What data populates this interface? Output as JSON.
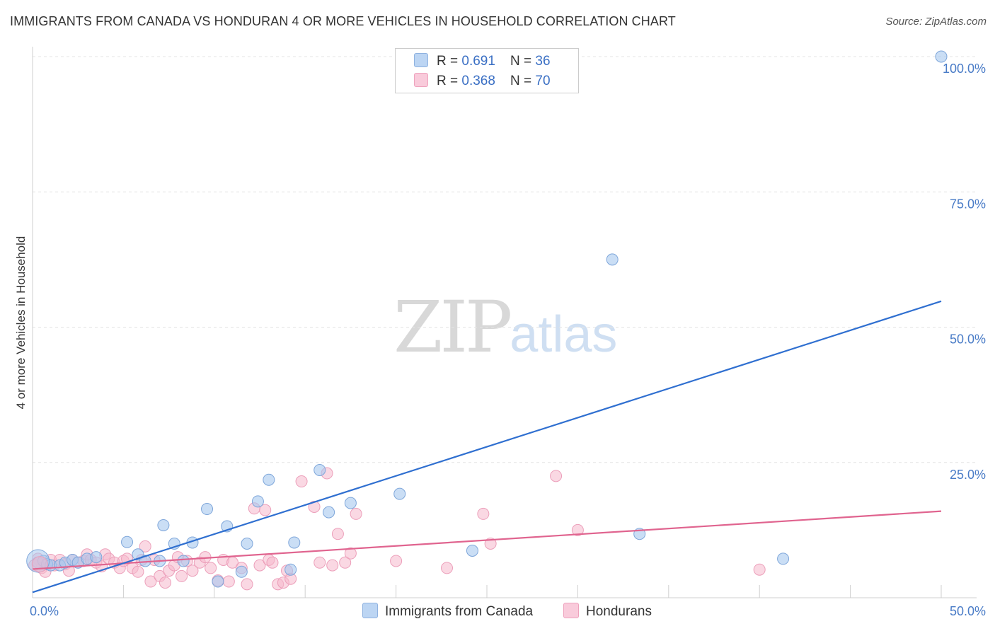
{
  "title": "IMMIGRANTS FROM CANADA VS HONDURAN 4 OR MORE VEHICLES IN HOUSEHOLD CORRELATION CHART",
  "source": "Source: ZipAtlas.com",
  "watermark": {
    "zip": "ZIP",
    "atlas": "atlas"
  },
  "legend": {
    "series1": {
      "r_label": "R = ",
      "r_value": "0.691",
      "n_label": "N = ",
      "n_value": "36"
    },
    "series2": {
      "r_label": "R = ",
      "r_value": "0.368",
      "n_label": "N = ",
      "n_value": "70"
    }
  },
  "chart_data": {
    "type": "scatter",
    "title": "IMMIGRANTS FROM CANADA VS HONDURAN 4 OR MORE VEHICLES IN HOUSEHOLD CORRELATION CHART",
    "xlabel": "",
    "ylabel": "4 or more Vehicles in Household",
    "xlim": [
      0,
      50
    ],
    "ylim": [
      0,
      100
    ],
    "x_tick_labels": [
      "0.0%",
      "50.0%"
    ],
    "y_ticks": [
      25,
      50,
      75,
      100
    ],
    "y_tick_labels": [
      "25.0%",
      "50.0%",
      "75.0%",
      "100.0%"
    ],
    "grid": true,
    "colors": {
      "series1": "#a7c8ef",
      "series1_line": "#2f6fd0",
      "series2": "#f5b8cc",
      "series2_line": "#e0648f"
    },
    "series": [
      {
        "name": "Immigrants from Canada",
        "trend": [
          [
            0,
            1.0
          ],
          [
            50,
            54.8
          ]
        ],
        "points": [
          [
            0.3,
            6.5
          ],
          [
            0.6,
            6.8
          ],
          [
            0.8,
            6.2
          ],
          [
            1.0,
            6.0
          ],
          [
            1.5,
            6.0
          ],
          [
            1.8,
            6.5
          ],
          [
            2.2,
            7.0
          ],
          [
            2.5,
            6.5
          ],
          [
            3.0,
            7.2
          ],
          [
            3.5,
            7.5
          ],
          [
            5.2,
            10.3
          ],
          [
            5.8,
            8.0
          ],
          [
            6.2,
            6.8
          ],
          [
            7.0,
            6.8
          ],
          [
            7.2,
            13.4
          ],
          [
            7.8,
            10.0
          ],
          [
            8.3,
            6.8
          ],
          [
            8.8,
            10.2
          ],
          [
            9.6,
            16.4
          ],
          [
            10.2,
            3.0
          ],
          [
            10.7,
            13.2
          ],
          [
            11.5,
            4.8
          ],
          [
            11.8,
            10.0
          ],
          [
            12.4,
            17.8
          ],
          [
            13.0,
            21.8
          ],
          [
            14.2,
            5.2
          ],
          [
            14.4,
            10.2
          ],
          [
            15.8,
            23.6
          ],
          [
            16.3,
            15.8
          ],
          [
            17.5,
            17.5
          ],
          [
            20.2,
            19.2
          ],
          [
            24.2,
            8.7
          ],
          [
            31.9,
            62.5
          ],
          [
            33.4,
            11.8
          ],
          [
            41.3,
            7.2
          ],
          [
            50.0,
            100.0
          ]
        ]
      },
      {
        "name": "Hondurans",
        "trend": [
          [
            0,
            5.3
          ],
          [
            50,
            16.0
          ]
        ],
        "points": [
          [
            0.3,
            7.2
          ],
          [
            0.5,
            5.5
          ],
          [
            0.7,
            4.8
          ],
          [
            1.0,
            7.0
          ],
          [
            1.2,
            6.0
          ],
          [
            1.5,
            7.0
          ],
          [
            1.8,
            6.2
          ],
          [
            2.0,
            5.0
          ],
          [
            2.2,
            7.0
          ],
          [
            2.5,
            6.5
          ],
          [
            2.8,
            6.8
          ],
          [
            3.0,
            8.0
          ],
          [
            3.2,
            7.0
          ],
          [
            3.5,
            6.5
          ],
          [
            3.8,
            5.8
          ],
          [
            4.0,
            8.0
          ],
          [
            4.2,
            7.2
          ],
          [
            4.5,
            6.5
          ],
          [
            4.8,
            5.5
          ],
          [
            5.0,
            6.8
          ],
          [
            5.2,
            7.2
          ],
          [
            5.5,
            5.5
          ],
          [
            5.8,
            4.8
          ],
          [
            6.0,
            7.0
          ],
          [
            6.2,
            9.5
          ],
          [
            6.5,
            3.0
          ],
          [
            6.7,
            7.0
          ],
          [
            7.0,
            4.0
          ],
          [
            7.3,
            2.8
          ],
          [
            7.5,
            5.0
          ],
          [
            7.8,
            6.0
          ],
          [
            8.0,
            7.5
          ],
          [
            8.2,
            4.0
          ],
          [
            8.5,
            6.8
          ],
          [
            8.8,
            5.0
          ],
          [
            9.2,
            6.5
          ],
          [
            9.5,
            7.5
          ],
          [
            9.8,
            5.5
          ],
          [
            10.2,
            3.2
          ],
          [
            10.5,
            7.0
          ],
          [
            10.8,
            3.0
          ],
          [
            11.0,
            6.5
          ],
          [
            11.5,
            5.5
          ],
          [
            11.8,
            2.5
          ],
          [
            12.2,
            16.5
          ],
          [
            12.5,
            6.0
          ],
          [
            12.8,
            16.2
          ],
          [
            13.0,
            7.0
          ],
          [
            13.2,
            6.5
          ],
          [
            13.5,
            2.5
          ],
          [
            13.8,
            2.8
          ],
          [
            14.0,
            5.0
          ],
          [
            14.2,
            3.5
          ],
          [
            14.8,
            21.5
          ],
          [
            15.5,
            16.8
          ],
          [
            15.8,
            6.5
          ],
          [
            16.2,
            23.0
          ],
          [
            16.5,
            6.0
          ],
          [
            16.8,
            11.8
          ],
          [
            17.2,
            6.5
          ],
          [
            17.5,
            8.2
          ],
          [
            17.8,
            15.5
          ],
          [
            20.0,
            6.8
          ],
          [
            22.8,
            5.5
          ],
          [
            24.8,
            15.5
          ],
          [
            25.2,
            10.0
          ],
          [
            28.8,
            22.5
          ],
          [
            30.0,
            12.5
          ],
          [
            40.0,
            5.2
          ],
          [
            0.1,
            6.0
          ]
        ]
      }
    ]
  }
}
